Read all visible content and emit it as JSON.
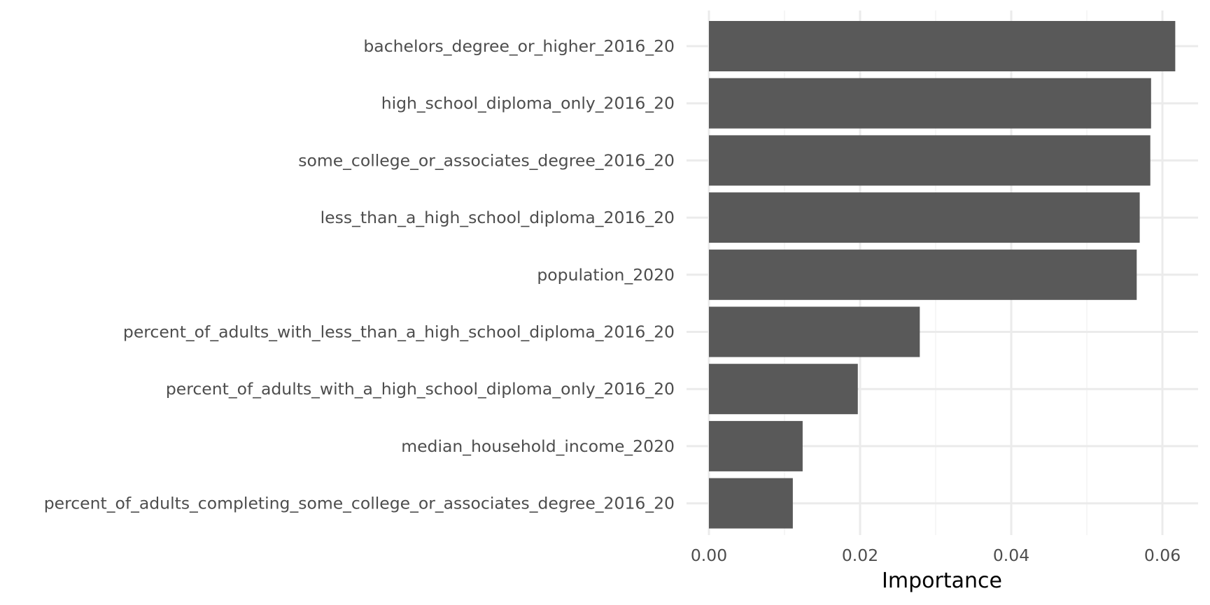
{
  "chart_data": {
    "type": "bar",
    "orientation": "horizontal",
    "categories": [
      "bachelors_degree_or_higher_2016_20",
      "high_school_diploma_only_2016_20",
      "some_college_or_associates_degree_2016_20",
      "less_than_a_high_school_diploma_2016_20",
      "population_2020",
      "percent_of_adults_with_less_than_a_high_school_diploma_2016_20",
      "percent_of_adults_with_a_high_school_diploma_only_2016_20",
      "median_household_income_2020",
      "percent_of_adults_completing_some_college_or_associates_degree_2016_20"
    ],
    "values": [
      0.0617,
      0.0585,
      0.0584,
      0.057,
      0.0566,
      0.0279,
      0.0197,
      0.0124,
      0.0111
    ],
    "title": "",
    "xlabel": "Importance",
    "ylabel": "",
    "xlim": [
      0,
      0.065
    ],
    "x_ticks": [
      0.0,
      0.02,
      0.04,
      0.06
    ],
    "x_tick_labels": [
      "0.00",
      "0.02",
      "0.04",
      "0.06"
    ],
    "grid": true,
    "legend": "none",
    "colors": {
      "bar": "#595959",
      "grid_major": "#ebebeb",
      "grid_minor": "#f4f4f4",
      "text": "#4d4d4d",
      "axis_title": "#000000"
    }
  }
}
